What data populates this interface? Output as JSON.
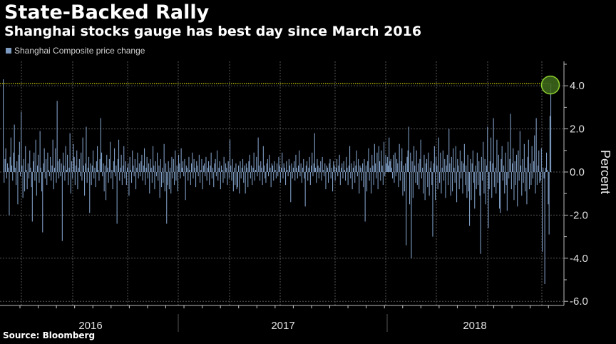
{
  "header": {
    "title": "State-Backed Rally",
    "subtitle": "Shanghai stocks gauge has best day since March 2016"
  },
  "footer": {
    "source": "Source: Bloomberg"
  },
  "colors": {
    "bars": "#7d9bc1",
    "highlight_line": "#e6e600",
    "highlight_circle_fill": "#3f6b1c",
    "highlight_circle_stroke": "#8ccf2e",
    "grid": "#555555",
    "background": "#000000"
  },
  "chart_data": {
    "type": "bar",
    "title": "State-Backed Rally",
    "subtitle": "Shanghai stocks gauge has best day since March 2016",
    "legend": {
      "position": "top-left",
      "entries": [
        "Shanghai Composite price change"
      ]
    },
    "series": [
      {
        "name": "Shanghai Composite price change",
        "values": [
          4.3,
          -0.5,
          0.6,
          1.1,
          -0.3,
          0.4,
          0.2,
          -2.0,
          0.7,
          1.6,
          0.3,
          -0.4,
          0.9,
          2.2,
          0.2,
          -0.6,
          0.5,
          -1.5,
          0.8,
          1.4,
          -0.2,
          2.8,
          0.3,
          -1.2,
          0.6,
          -0.9,
          1.2,
          0.1,
          -0.8,
          0.4,
          -0.3,
          1.0,
          0.2,
          -0.7,
          -2.3,
          0.5,
          0.9,
          -0.4,
          1.5,
          -1.1,
          0.3,
          0.8,
          -0.5,
          1.9,
          0.2,
          -0.9,
          -2.8,
          0.4,
          1.1,
          -0.3,
          0.6,
          -0.6,
          0.9,
          0.1,
          -0.2,
          0.7,
          -0.4,
          0.3,
          1.5,
          -0.8,
          0.2,
          1.1,
          -0.5,
          3.3,
          0.5,
          -0.3,
          0.6,
          -0.2,
          0.4,
          -3.2,
          0.9,
          0.3,
          -0.4,
          1.2,
          0.1,
          0.8,
          -0.6,
          0.2,
          1.8,
          -1.0,
          0.5,
          -0.3,
          1.3,
          0.7,
          -0.6,
          0.3,
          1.0,
          -0.8,
          0.2,
          0.6,
          -0.2,
          0.9,
          -0.4,
          1.6,
          0.3,
          -1.1,
          0.4,
          2.1,
          -0.5,
          0.2,
          0.7,
          -1.9,
          0.4,
          -0.6,
          0.3,
          1.0,
          -0.3,
          0.2,
          -0.7,
          0.5,
          1.2,
          0.1,
          -0.4,
          0.6,
          2.5,
          0.9,
          -0.2,
          0.4,
          -0.9,
          0.3,
          -1.3,
          0.8,
          0.2,
          -0.5,
          0.6,
          1.4,
          -0.3,
          0.1,
          -0.8,
          0.5,
          1.1,
          -0.2,
          0.3,
          -2.4,
          0.6,
          1.5,
          -0.4,
          0.2,
          0.8,
          -0.6,
          0.3,
          1.2,
          -0.3,
          0.5,
          -0.6,
          0.2,
          0.4,
          -1.1,
          0.7,
          0.1,
          -0.5,
          1.0,
          0.3,
          -0.2,
          0.6,
          -0.8,
          0.2,
          0.9,
          -0.3,
          0.4,
          -0.2,
          0.5,
          0.8,
          -0.4,
          0.3,
          1.1,
          -0.6,
          0.2,
          0.7,
          -0.3,
          0.4,
          -1.0,
          0.6,
          0.2,
          -0.5,
          1.2,
          0.3,
          -0.8,
          0.5,
          -0.2,
          0.9,
          -0.4,
          0.3,
          -1.2,
          0.6,
          -0.7,
          0.2,
          -0.5,
          1.3,
          -0.9,
          0.4,
          -2.4,
          -0.6,
          0.5,
          -0.8,
          0.2,
          -1.0,
          0.7,
          -0.3,
          0.6,
          -0.6,
          1.0,
          -0.4,
          0.3,
          -0.9,
          0.8,
          0.4,
          -0.3,
          1.1,
          0.2,
          0.5,
          -0.2,
          0.6,
          -1.3,
          0.3,
          0.2,
          -0.4,
          0.7,
          0.1,
          -0.6,
          0.4,
          0.9,
          -0.3,
          0.6,
          0.2,
          -0.7,
          0.5,
          0.3,
          -0.2,
          0.8,
          -0.5,
          0.1,
          0.6,
          -0.8,
          0.3,
          0.4,
          -0.2,
          0.7,
          -0.4,
          0.2,
          0.5,
          -0.6,
          0.3,
          0.9,
          -0.3,
          0.2,
          -0.7,
          0.4,
          0.6,
          -0.2,
          1.0,
          -0.4,
          0.2,
          0.5,
          -0.8,
          0.3,
          0.1,
          -0.5,
          0.7,
          -0.3,
          0.4,
          0.2,
          -0.6,
          0.5,
          -0.3,
          1.5,
          0.3,
          -0.4,
          0.6,
          -0.9,
          0.2,
          -0.6,
          0.4,
          -0.8,
          -0.7,
          0.3,
          -1.0,
          0.5,
          -0.3,
          0.2,
          0.6,
          -0.5,
          0.3,
          -1.0,
          0.4,
          0.2,
          -0.7,
          0.5,
          0.8,
          -0.3,
          0.3,
          -0.6,
          0.2,
          0.9,
          -0.4,
          0.1,
          0.7,
          -0.2,
          1.6,
          0.3,
          -0.4,
          0.5,
          0.2,
          -0.6,
          1.2,
          0.3,
          -0.3,
          -0.5,
          0.4,
          0.6,
          -0.2,
          0.8,
          0.2,
          -0.7,
          0.4,
          0.3,
          -0.4,
          0.5,
          0.1,
          -0.3,
          0.4,
          -0.2,
          0.7,
          0.3,
          -0.5,
          0.2,
          0.9,
          -0.3,
          0.4,
          0.2,
          -0.6,
          0.5,
          0.1,
          -0.2,
          0.6,
          0.3,
          -1.4,
          0.4,
          -0.3,
          0.2,
          0.5,
          -0.4,
          0.8,
          0.2,
          -0.3,
          0.3,
          1.0,
          -0.2,
          0.4,
          -0.5,
          0.2,
          0.6,
          -0.3,
          -1.6,
          0.3,
          0.5,
          -0.4,
          0.2,
          0.7,
          -0.6,
          0.3,
          0.9,
          -0.2,
          0.4,
          1.8,
          0.2,
          -0.5,
          0.6,
          0.3,
          -0.3,
          0.2,
          0.5,
          -0.4,
          0.7,
          0.1,
          -0.2,
          0.4,
          -0.8,
          0.3,
          0.2,
          -0.5,
          0.4,
          0.6,
          -0.3,
          0.2,
          -0.9,
          0.5,
          0.3,
          -0.4,
          0.2,
          0.6,
          -0.2,
          0.3,
          0.8,
          -0.6,
          0.2,
          0.4,
          -0.3,
          0.5,
          0.1,
          -0.4,
          0.7,
          0.2,
          -0.6,
          0.3,
          1.2,
          -0.3,
          0.4,
          -0.8,
          0.2,
          0.5,
          -0.5,
          0.3,
          1.0,
          -0.2,
          0.6,
          -1.0,
          0.3,
          0.2,
          -0.4,
          0.4,
          -0.7,
          0.6,
          -2.3,
          0.3,
          -0.9,
          0.5,
          1.1,
          -0.4,
          0.2,
          -1.0,
          0.8,
          0.3,
          -0.6,
          1.3,
          0.4,
          -0.3,
          0.9,
          -0.8,
          1.2,
          0.5,
          -0.4,
          1.0,
          0.3,
          -0.6,
          1.4,
          -0.2,
          0.8,
          0.4,
          0.7,
          0.3,
          1.6,
          0.5,
          0.6,
          0.2,
          -0.3,
          0.8,
          -0.5,
          0.9,
          -0.2,
          0.6,
          0.4,
          -0.7,
          1.3,
          -0.4,
          0.5,
          1.1,
          -1.1,
          0.3,
          -0.9,
          0.4,
          -3.4,
          0.7,
          1.0,
          2.1,
          -1.5,
          0.9,
          -4.0,
          0.5,
          -1.2,
          1.2,
          0.3,
          -0.5,
          1.0,
          -0.6,
          0.4,
          -0.8,
          0.6,
          1.5,
          -0.3,
          0.2,
          -1.0,
          0.8,
          -1.3,
          0.4,
          0.6,
          -0.7,
          0.9,
          -1.1,
          0.2,
          0.5,
          -0.6,
          -3.0,
          0.4,
          1.2,
          -1.3,
          0.7,
          0.3,
          -0.8,
          1.6,
          -0.5,
          0.9,
          -1.0,
          0.2,
          1.0,
          -0.4,
          0.6,
          -1.2,
          0.3,
          0.8,
          -0.6,
          2.0,
          0.4,
          -1.1,
          0.7,
          -0.9,
          1.1,
          0.2,
          -0.5,
          1.2,
          -1.4,
          0.6,
          0.3,
          -0.8,
          1.0,
          -0.3,
          0.5,
          -1.0,
          0.4,
          1.3,
          -0.6,
          0.3,
          -1.2,
          0.8,
          -0.9,
          -2.5,
          0.6,
          -1.3,
          0.4,
          1.0,
          -0.5,
          -1.7,
          0.3,
          -0.8,
          0.9,
          -0.6,
          0.5,
          -1.1,
          -3.8,
          0.7,
          -0.4,
          1.4,
          -1.0,
          0.6,
          -1.5,
          0.3,
          2.1,
          -2.6,
          -0.8,
          0.5,
          1.6,
          -1.2,
          0.4,
          2.5,
          -0.7,
          0.2,
          -1.0,
          1.5,
          -0.5,
          0.8,
          -1.7,
          -1.9,
          0.6,
          1.2,
          -0.4,
          0.3,
          -1.0,
          0.9,
          -0.6,
          -1.8,
          1.4,
          -0.3,
          0.6,
          2.7,
          -0.8,
          0.4,
          1.1,
          -1.3,
          0.5,
          -0.6,
          0.8,
          -1.6,
          1.0,
          -0.4,
          1.9,
          0.3,
          -1.1,
          0.6,
          -0.5,
          1.3,
          -0.9,
          0.2,
          -1.5,
          0.7,
          1.5,
          -0.8,
          0.4,
          -0.6,
          1.2,
          -0.3,
          0.5,
          1.7,
          -1.0,
          2.5,
          -0.6,
          0.3,
          1.0,
          -0.5,
          -0.4,
          1.1,
          -3.7,
          0.2,
          -0.3,
          -5.2,
          0.2,
          0.9,
          0.1,
          -1.5,
          -2.9,
          2.6,
          4.1
        ]
      }
    ],
    "x_axis": {
      "labels": [
        "2016",
        "2017",
        "2018"
      ]
    },
    "y_axis": {
      "label": "Percent",
      "range": [
        -6.0,
        5.0
      ],
      "ticks": [
        "4.0",
        "2.0",
        "0.0",
        "-2.0",
        "-4.0",
        "-6.0"
      ],
      "tick_values": [
        4,
        2,
        0,
        -2,
        -4,
        -6
      ],
      "position": "right"
    },
    "grid": true,
    "annotation": {
      "type": "highlight-circle-and-reference-line",
      "value": 4.1,
      "at": "last bar"
    }
  }
}
